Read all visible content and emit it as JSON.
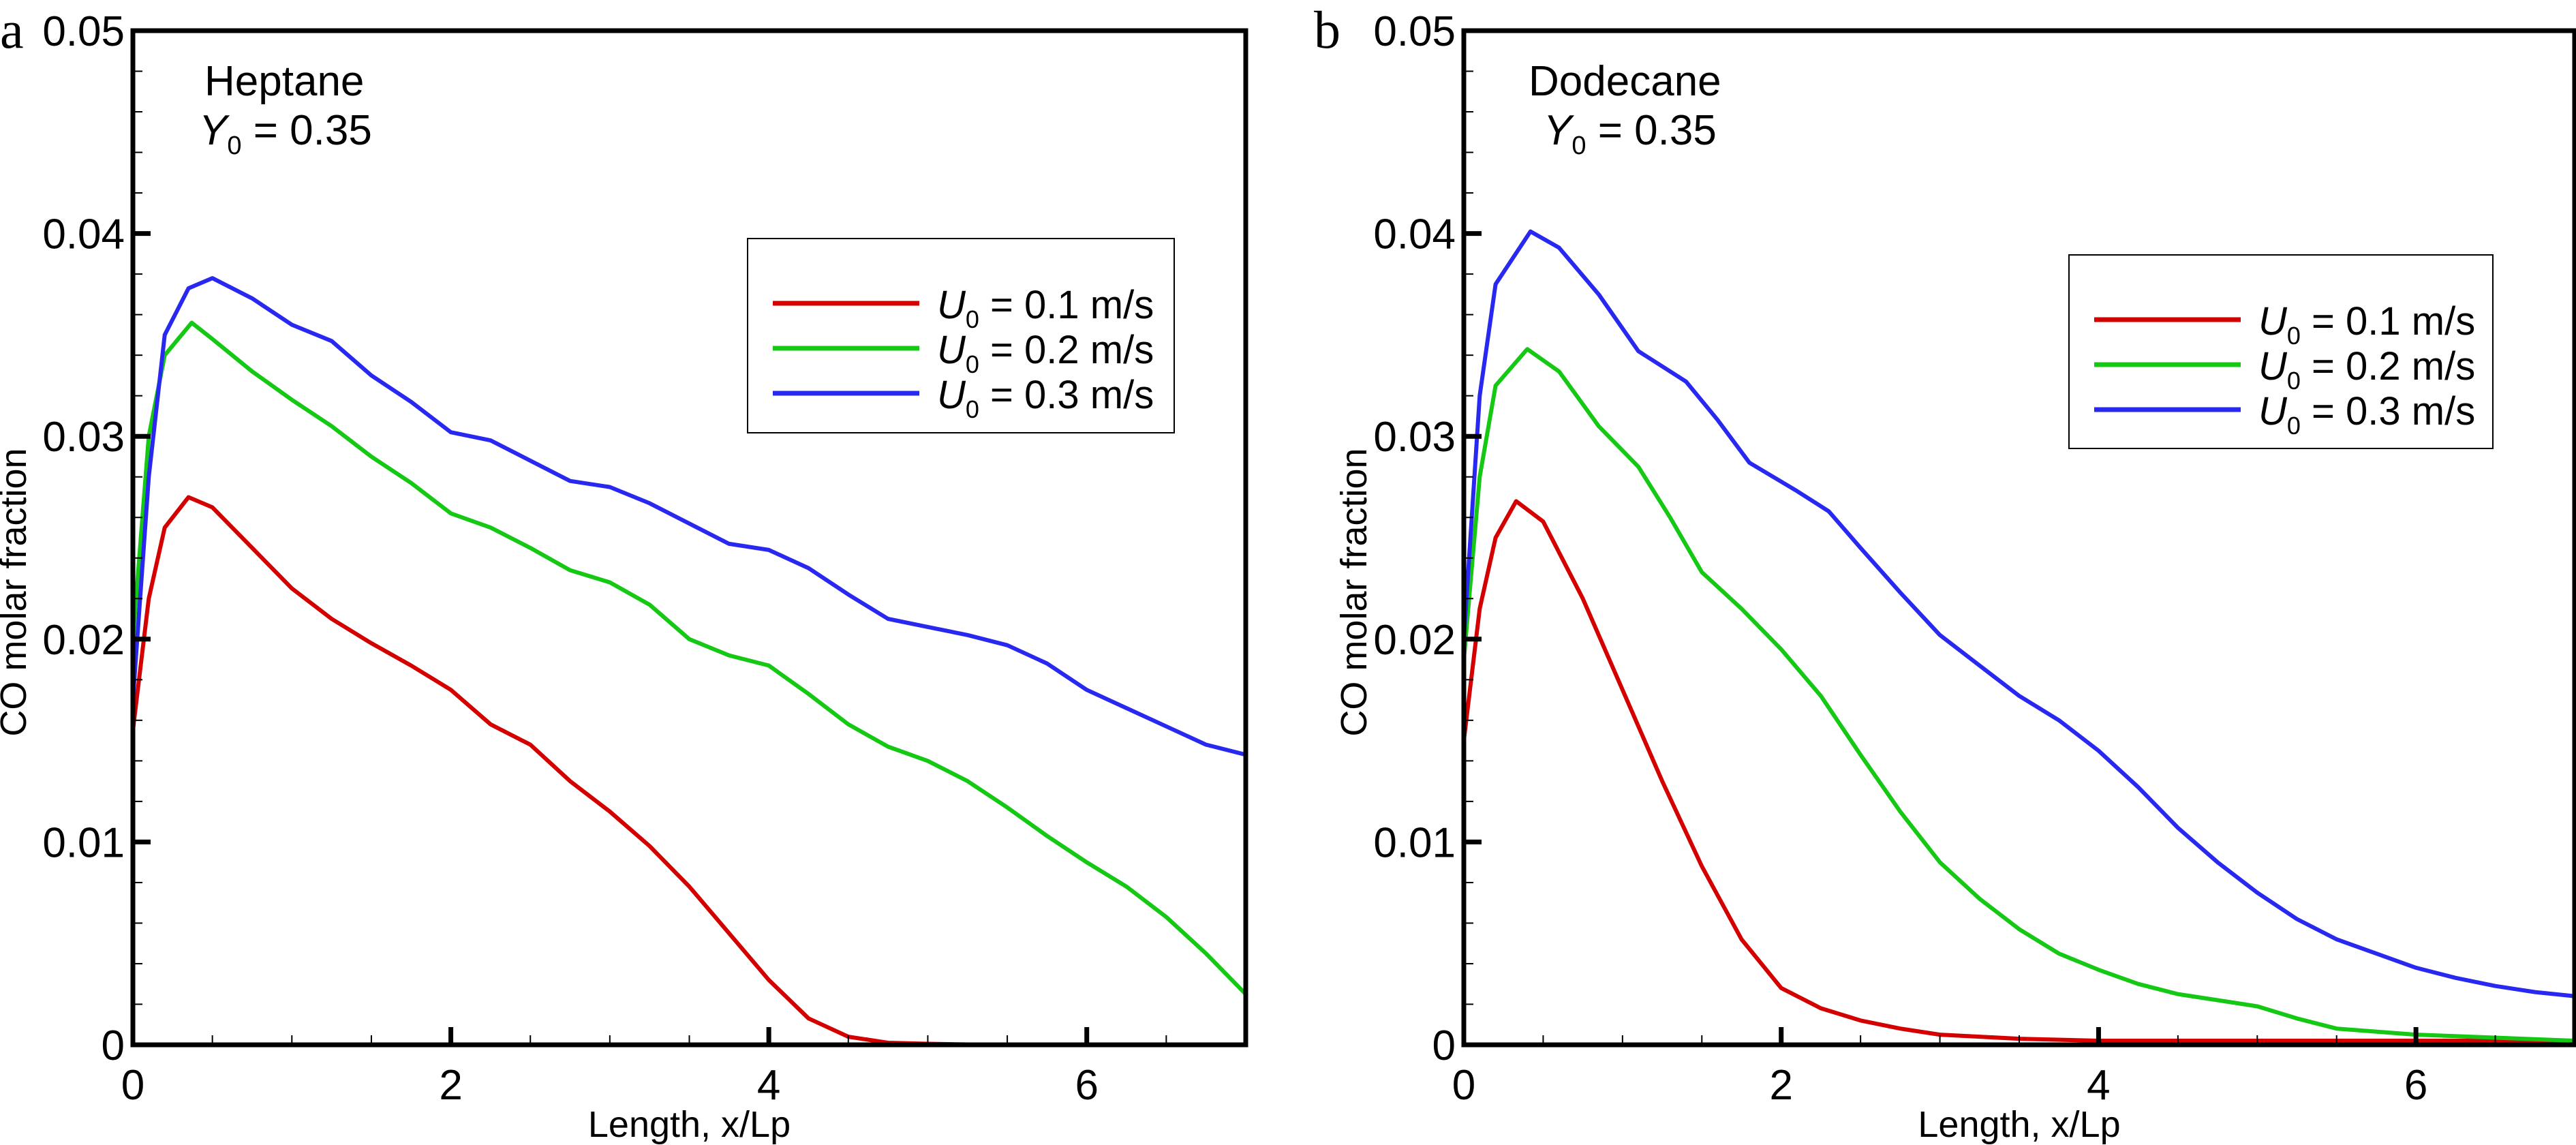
{
  "chart_data": [
    {
      "type": "line",
      "panel_label": "a",
      "annotation": {
        "fuel": "Heptane",
        "y0_symbol": "Y",
        "y0_sub": "0",
        "y0_value": " = 0.35"
      },
      "xlabel": "Length, x/Lp",
      "ylabel": "CO molar fraction",
      "xlim": [
        0,
        7
      ],
      "ylim": [
        0,
        0.05
      ],
      "xticks": [
        "0",
        "2",
        "4",
        "6"
      ],
      "yticks": [
        "0",
        "0.01",
        "0.02",
        "0.03",
        "0.04",
        "0.05"
      ],
      "grid": false,
      "legend_position": "upper-right",
      "series": [
        {
          "name_symbol": "U",
          "name_sub": "0",
          "name_rest": " = 0.1 m/s",
          "color": "#d40000",
          "points": [
            [
              0,
              0.0155
            ],
            [
              0.1,
              0.022
            ],
            [
              0.2,
              0.0255
            ],
            [
              0.35,
              0.027
            ],
            [
              0.5,
              0.0265
            ],
            [
              0.75,
              0.0245
            ],
            [
              1,
              0.0225
            ],
            [
              1.25,
              0.021
            ],
            [
              1.5,
              0.0198
            ],
            [
              1.75,
              0.0187
            ],
            [
              2,
              0.0175
            ],
            [
              2.25,
              0.0158
            ],
            [
              2.5,
              0.0148
            ],
            [
              2.75,
              0.013
            ],
            [
              3,
              0.0115
            ],
            [
              3.25,
              0.0098
            ],
            [
              3.5,
              0.0078
            ],
            [
              3.75,
              0.0055
            ],
            [
              4,
              0.0032
            ],
            [
              4.25,
              0.0013
            ],
            [
              4.5,
              0.0004
            ],
            [
              4.75,
              0.0001
            ],
            [
              5,
              5e-05
            ],
            [
              5.4,
              0
            ]
          ]
        },
        {
          "name_symbol": "U",
          "name_sub": "0",
          "name_rest": " = 0.2 m/s",
          "color": "#14c814",
          "points": [
            [
              0,
              0.02
            ],
            [
              0.1,
              0.03
            ],
            [
              0.2,
              0.034
            ],
            [
              0.37,
              0.0356
            ],
            [
              0.5,
              0.0348
            ],
            [
              0.75,
              0.0332
            ],
            [
              1,
              0.0318
            ],
            [
              1.25,
              0.0305
            ],
            [
              1.5,
              0.029
            ],
            [
              1.75,
              0.0277
            ],
            [
              2,
              0.0262
            ],
            [
              2.25,
              0.0255
            ],
            [
              2.5,
              0.0245
            ],
            [
              2.75,
              0.0234
            ],
            [
              3,
              0.0228
            ],
            [
              3.25,
              0.0217
            ],
            [
              3.5,
              0.02
            ],
            [
              3.75,
              0.0192
            ],
            [
              4,
              0.0187
            ],
            [
              4.25,
              0.0173
            ],
            [
              4.5,
              0.0158
            ],
            [
              4.75,
              0.0147
            ],
            [
              5,
              0.014
            ],
            [
              5.25,
              0.013
            ],
            [
              5.5,
              0.0117
            ],
            [
              5.75,
              0.0103
            ],
            [
              6,
              0.009
            ],
            [
              6.25,
              0.0078
            ],
            [
              6.5,
              0.0063
            ],
            [
              6.75,
              0.0045
            ],
            [
              7,
              0.0025
            ]
          ]
        },
        {
          "name_symbol": "U",
          "name_sub": "0",
          "name_rest": " = 0.3 m/s",
          "color": "#2828f0",
          "points": [
            [
              0,
              0.017
            ],
            [
              0.1,
              0.028
            ],
            [
              0.2,
              0.035
            ],
            [
              0.35,
              0.0373
            ],
            [
              0.5,
              0.0378
            ],
            [
              0.75,
              0.0368
            ],
            [
              1,
              0.0355
            ],
            [
              1.25,
              0.0347
            ],
            [
              1.5,
              0.033
            ],
            [
              1.75,
              0.0317
            ],
            [
              2,
              0.0302
            ],
            [
              2.25,
              0.0298
            ],
            [
              2.5,
              0.0288
            ],
            [
              2.75,
              0.0278
            ],
            [
              3,
              0.0275
            ],
            [
              3.25,
              0.0267
            ],
            [
              3.5,
              0.0257
            ],
            [
              3.75,
              0.0247
            ],
            [
              4,
              0.0244
            ],
            [
              4.25,
              0.0235
            ],
            [
              4.5,
              0.0222
            ],
            [
              4.75,
              0.021
            ],
            [
              5,
              0.0206
            ],
            [
              5.25,
              0.0202
            ],
            [
              5.5,
              0.0197
            ],
            [
              5.75,
              0.0188
            ],
            [
              6,
              0.0175
            ],
            [
              6.25,
              0.0166
            ],
            [
              6.5,
              0.0157
            ],
            [
              6.75,
              0.0148
            ],
            [
              7,
              0.0143
            ]
          ]
        }
      ]
    },
    {
      "type": "line",
      "panel_label": "b",
      "annotation": {
        "fuel": "Dodecane",
        "y0_symbol": "Y",
        "y0_sub": "0",
        "y0_value": " = 0.35"
      },
      "xlabel": "Length, x/Lp",
      "ylabel": "CO molar fraction",
      "xlim": [
        0,
        7
      ],
      "ylim": [
        0,
        0.05
      ],
      "xticks": [
        "0",
        "2",
        "4",
        "6"
      ],
      "yticks": [
        "0",
        "0.01",
        "0.02",
        "0.03",
        "0.04",
        "0.05"
      ],
      "grid": false,
      "legend_position": "upper-right",
      "series": [
        {
          "name_symbol": "U",
          "name_sub": "0",
          "name_rest": " = 0.1 m/s",
          "color": "#d40000",
          "points": [
            [
              0,
              0.015
            ],
            [
              0.1,
              0.0215
            ],
            [
              0.2,
              0.025
            ],
            [
              0.33,
              0.0268
            ],
            [
              0.5,
              0.0258
            ],
            [
              0.75,
              0.022
            ],
            [
              1,
              0.0175
            ],
            [
              1.25,
              0.013
            ],
            [
              1.5,
              0.0088
            ],
            [
              1.75,
              0.0052
            ],
            [
              2,
              0.0028
            ],
            [
              2.25,
              0.0018
            ],
            [
              2.5,
              0.0012
            ],
            [
              2.75,
              0.0008
            ],
            [
              3,
              0.0005
            ],
            [
              3.5,
              0.0003
            ],
            [
              4,
              0.0002
            ],
            [
              5,
              0.0002
            ],
            [
              7,
              0.0002
            ]
          ]
        },
        {
          "name_symbol": "U",
          "name_sub": "0",
          "name_rest": " = 0.2 m/s",
          "color": "#14c814",
          "points": [
            [
              0,
              0.019
            ],
            [
              0.1,
              0.028
            ],
            [
              0.2,
              0.0325
            ],
            [
              0.4,
              0.0343
            ],
            [
              0.6,
              0.0332
            ],
            [
              0.85,
              0.0305
            ],
            [
              1.1,
              0.0285
            ],
            [
              1.3,
              0.026
            ],
            [
              1.5,
              0.0233
            ],
            [
              1.75,
              0.0215
            ],
            [
              2,
              0.0195
            ],
            [
              2.25,
              0.0172
            ],
            [
              2.5,
              0.0143
            ],
            [
              2.75,
              0.0115
            ],
            [
              3,
              0.009
            ],
            [
              3.25,
              0.0072
            ],
            [
              3.5,
              0.0057
            ],
            [
              3.75,
              0.0045
            ],
            [
              4,
              0.0037
            ],
            [
              4.25,
              0.003
            ],
            [
              4.5,
              0.0025
            ],
            [
              4.75,
              0.0022
            ],
            [
              5,
              0.0019
            ],
            [
              5.25,
              0.0013
            ],
            [
              5.5,
              0.0008
            ],
            [
              6,
              0.0005
            ],
            [
              7,
              0.0002
            ]
          ]
        },
        {
          "name_symbol": "U",
          "name_sub": "0",
          "name_rest": " = 0.3 m/s",
          "color": "#2828f0",
          "points": [
            [
              0,
              0.02
            ],
            [
              0.1,
              0.032
            ],
            [
              0.2,
              0.0375
            ],
            [
              0.42,
              0.0401
            ],
            [
              0.6,
              0.0393
            ],
            [
              0.85,
              0.037
            ],
            [
              1.1,
              0.0342
            ],
            [
              1.4,
              0.0327
            ],
            [
              1.6,
              0.0308
            ],
            [
              1.8,
              0.0287
            ],
            [
              2.1,
              0.0273
            ],
            [
              2.3,
              0.0263
            ],
            [
              2.5,
              0.0245
            ],
            [
              2.75,
              0.0223
            ],
            [
              3,
              0.0202
            ],
            [
              3.25,
              0.0187
            ],
            [
              3.5,
              0.0172
            ],
            [
              3.75,
              0.016
            ],
            [
              4,
              0.0145
            ],
            [
              4.25,
              0.0127
            ],
            [
              4.5,
              0.0107
            ],
            [
              4.75,
              0.009
            ],
            [
              5,
              0.0075
            ],
            [
              5.25,
              0.0062
            ],
            [
              5.5,
              0.0052
            ],
            [
              5.75,
              0.0045
            ],
            [
              6,
              0.0038
            ],
            [
              6.25,
              0.0033
            ],
            [
              6.5,
              0.0029
            ],
            [
              6.75,
              0.0026
            ],
            [
              7,
              0.0024
            ]
          ]
        }
      ]
    }
  ]
}
